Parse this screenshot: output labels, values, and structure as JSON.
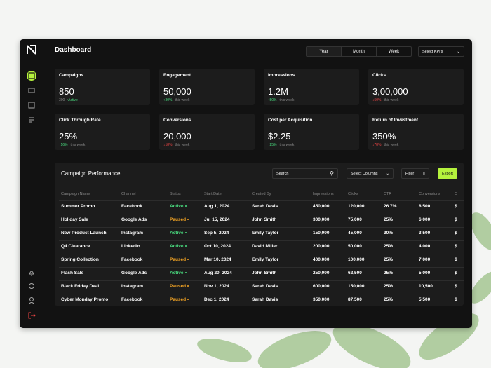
{
  "header": {
    "title": "Dashboard",
    "periods": [
      "Year",
      "Month",
      "Week"
    ],
    "kpi_select": "Select KPI's"
  },
  "kpis": [
    {
      "label": "Campaigns",
      "value": "850",
      "sub_value": "300",
      "sub_label": "Active"
    },
    {
      "label": "Engagement",
      "value": "50,000",
      "change": "30%",
      "direction": "up",
      "note": "this week"
    },
    {
      "label": "Impressions",
      "value": "1.2M",
      "change": "50%",
      "direction": "up",
      "note": "this week"
    },
    {
      "label": "Clicks",
      "value": "3,00,000",
      "change": "50%",
      "direction": "down",
      "note": "this week"
    },
    {
      "label": "Click Through Rate",
      "value": "25%",
      "change": "16%",
      "direction": "up",
      "note": "this week"
    },
    {
      "label": "Conversions",
      "value": "20,000",
      "change": "18%",
      "direction": "down",
      "note": "this week"
    },
    {
      "label": "Cost per Acquisition",
      "value": "$2.25",
      "change": "25%",
      "direction": "up",
      "note": "this week"
    },
    {
      "label": "Return of Investment",
      "value": "350%",
      "change": "78%",
      "direction": "down",
      "note": "this week"
    }
  ],
  "table": {
    "title": "Campaign Performance",
    "search": "Search",
    "select_columns": "Select Columns",
    "filter": "Filter",
    "export": "Export",
    "columns": [
      "Campaign Name",
      "Channel",
      "Status",
      "Start Date",
      "Created By",
      "Impressions",
      "Clicks",
      "CTR",
      "Conversions",
      "C"
    ],
    "rows": [
      [
        "Summer Promo",
        "Facebook",
        "Active",
        "Aug 1, 2024",
        "Sarah Davis",
        "450,000",
        "120,000",
        "26.7%",
        "8,500",
        "$"
      ],
      [
        "Holiday Sale",
        "Google Ads",
        "Paused",
        "Jul 15, 2024",
        "John Smith",
        "300,000",
        "75,000",
        "25%",
        "6,000",
        "$"
      ],
      [
        "New Product Launch",
        "Instagram",
        "Active",
        "Sep 5, 2024",
        "Emily Taylor",
        "150,000",
        "45,000",
        "30%",
        "3,500",
        "$"
      ],
      [
        "Q4 Clearance",
        "LinkedIn",
        "Active",
        "Oct 10, 2024",
        "David Miller",
        "200,000",
        "50,000",
        "25%",
        "4,000",
        "$"
      ],
      [
        "Spring Collection",
        "Facebook",
        "Paused",
        "Mar 10, 2024",
        "Emily Taylor",
        "400,000",
        "100,000",
        "25%",
        "7,000",
        "$"
      ],
      [
        "Flash Sale",
        "Google Ads",
        "Active",
        "Aug 20, 2024",
        "John Smith",
        "250,000",
        "62,500",
        "25%",
        "5,000",
        "$"
      ],
      [
        "Black Friday Deal",
        "Instagram",
        "Paused",
        "Nov 1, 2024",
        "Sarah Davis",
        "600,000",
        "150,000",
        "25%",
        "10,500",
        "$"
      ],
      [
        "Cyber Monday Promo",
        "Facebook",
        "Paused",
        "Dec 1, 2024",
        "Sarah Davis",
        "350,000",
        "87,500",
        "25%",
        "5,500",
        "$"
      ]
    ]
  },
  "status_colors": {
    "Active": "#4ade80",
    "Paused": "#f5a524"
  }
}
